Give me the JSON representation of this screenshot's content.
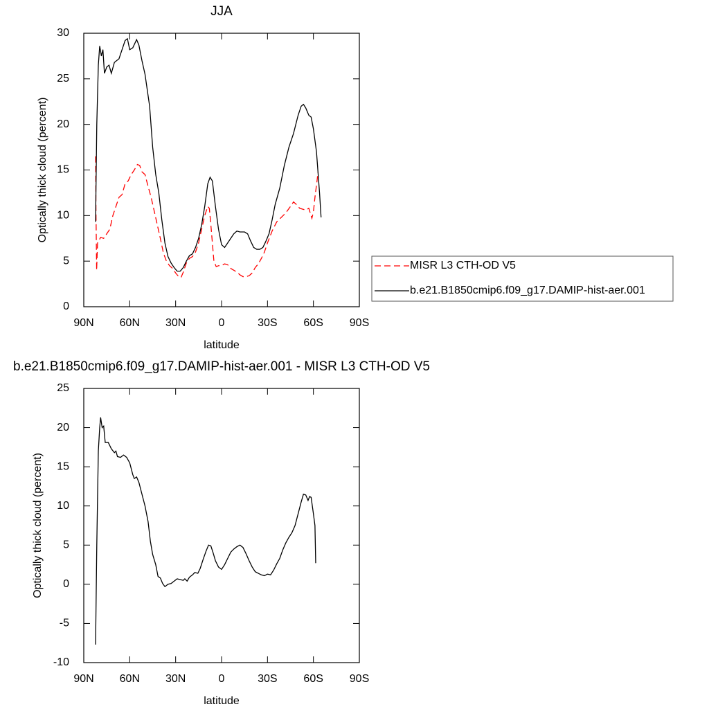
{
  "chart_data": [
    {
      "type": "line",
      "title": "JJA",
      "xlabel": "latitude",
      "ylabel": "Optically thick cloud (percent)",
      "xlim": [
        90,
        -90
      ],
      "xticks": [
        {
          "value": 90,
          "label": "90N"
        },
        {
          "value": 60,
          "label": "60N"
        },
        {
          "value": 30,
          "label": "30N"
        },
        0,
        {
          "value": -30,
          "label": "30S"
        },
        {
          "value": -60,
          "label": "60S"
        },
        {
          "value": -90,
          "label": "90S"
        }
      ],
      "ylim": [
        0,
        30
      ],
      "yticks": [
        0,
        5,
        10,
        15,
        20,
        25,
        30
      ],
      "legend": "right",
      "series": [
        {
          "name": "MISR L3 CTH-OD V5",
          "color": "#ff0000",
          "line_style": "dashed",
          "x": [
            82.3,
            82,
            81.6,
            81,
            79,
            77,
            75,
            73,
            71,
            69,
            67,
            65,
            63,
            61,
            59,
            57,
            55,
            53.5,
            52,
            50,
            48,
            46,
            44,
            42,
            40,
            38,
            36,
            34,
            32,
            30,
            28,
            26.5,
            25,
            23,
            21,
            19,
            17,
            15,
            13,
            11,
            9,
            8,
            7,
            6,
            5,
            3.5,
            2,
            0,
            -2,
            -4,
            -6,
            -8,
            -10,
            -12,
            -14,
            -16,
            -18,
            -20,
            -22,
            -24,
            -26,
            -28,
            -30,
            -33,
            -36,
            -39,
            -42,
            -45,
            -47,
            -49,
            -51,
            -53,
            -55,
            -57,
            -59,
            -60,
            -61,
            -62.5,
            -63
          ],
          "values": [
            16.5,
            10,
            4,
            7,
            7.6,
            7.5,
            8,
            8.5,
            10,
            11,
            12,
            12.3,
            13.5,
            13.8,
            14.5,
            15,
            15.6,
            15.5,
            14.8,
            14.5,
            13.2,
            12,
            10.5,
            9,
            7.5,
            5.9,
            5,
            4.5,
            4.2,
            3.7,
            3.3,
            3.2,
            3.8,
            4.8,
            5.3,
            5.5,
            6,
            7,
            8.5,
            10,
            11,
            10.8,
            9,
            7,
            5,
            4.4,
            4.5,
            4.5,
            4.7,
            4.6,
            4.2,
            4,
            3.8,
            3.5,
            3.3,
            3.3,
            3.4,
            3.7,
            4.3,
            4.7,
            5.3,
            6,
            7,
            8.3,
            9.3,
            9.8,
            10.3,
            11,
            11.5,
            11.2,
            10.8,
            10.7,
            10.6,
            10.8,
            9.7,
            10.4,
            12,
            14,
            14.8
          ]
        },
        {
          "name": "b.e21.B1850cmip6.f09_g17.DAMIP-hist-aer.001",
          "color": "#000000",
          "line_style": "solid",
          "x": [
            82.3,
            81.5,
            80.5,
            79.6,
            78.5,
            77.5,
            76.5,
            75,
            73.5,
            72,
            70,
            67,
            65,
            63,
            61.5,
            60,
            58,
            55.5,
            54,
            52,
            50,
            47,
            45,
            43,
            41,
            39,
            37,
            35,
            33,
            31,
            29,
            27,
            25,
            23,
            21,
            19,
            17,
            15,
            13,
            11,
            9,
            7.5,
            6,
            4,
            2,
            0,
            -2,
            -4,
            -6,
            -8,
            -10,
            -12,
            -15,
            -17,
            -19,
            -21,
            -23,
            -25,
            -27,
            -29,
            -31,
            -33,
            -35,
            -38,
            -41,
            -44,
            -47,
            -50,
            -52,
            -53.5,
            -55,
            -57,
            -58.5,
            -60,
            -62,
            -64,
            -65
          ],
          "values": [
            9.3,
            20,
            26.5,
            28.6,
            27.5,
            28.2,
            25.6,
            26.3,
            26.5,
            25.6,
            26.8,
            27.2,
            28.2,
            29.2,
            29.4,
            28.2,
            28.4,
            29.3,
            28.7,
            27,
            25.5,
            22,
            17.5,
            14.5,
            12.5,
            9.5,
            7,
            5.5,
            4.8,
            4.3,
            3.9,
            3.9,
            4.3,
            5,
            5.6,
            5.8,
            6.5,
            7.5,
            9,
            11,
            13.5,
            14.2,
            13.8,
            11,
            8.5,
            6.8,
            6.5,
            7,
            7.5,
            8,
            8.3,
            8.2,
            8.2,
            8,
            7.2,
            6.5,
            6.3,
            6.3,
            6.5,
            7.2,
            8,
            9.5,
            11.2,
            13,
            15.5,
            17.5,
            19,
            21,
            22,
            22.2,
            21.8,
            21,
            20.8,
            19.5,
            17,
            12.5,
            9.8
          ]
        }
      ]
    },
    {
      "type": "line",
      "title": "b.e21.B1850cmip6.f09_g17.DAMIP-hist-aer.001 - MISR L3 CTH-OD V5",
      "xlabel": "latitude",
      "ylabel": "Optically thick cloud (percent)",
      "xlim": [
        90,
        -90
      ],
      "xticks": [
        {
          "value": 90,
          "label": "90N"
        },
        {
          "value": 60,
          "label": "60N"
        },
        {
          "value": 30,
          "label": "30N"
        },
        0,
        {
          "value": -30,
          "label": "30S"
        },
        {
          "value": -60,
          "label": "60S"
        },
        {
          "value": -90,
          "label": "90S"
        }
      ],
      "ylim": [
        -10,
        25
      ],
      "yticks": [
        -10,
        -5,
        0,
        5,
        10,
        15,
        20,
        25
      ],
      "color": "#000000",
      "x": [
        82.3,
        81.5,
        80.5,
        79.6,
        79,
        78,
        77,
        76,
        74,
        72,
        70,
        69,
        68,
        66,
        64,
        62,
        60,
        58,
        57,
        55.5,
        54,
        52,
        50,
        48,
        46.5,
        45,
        43,
        41.5,
        40,
        38.5,
        37,
        35,
        33,
        31,
        29,
        27,
        25,
        24,
        22.5,
        21,
        19,
        17.5,
        15.5,
        14,
        12,
        10,
        8.5,
        7,
        5.5,
        4,
        2,
        0,
        -2,
        -4,
        -6,
        -8,
        -10,
        -12,
        -14,
        -16,
        -18,
        -20,
        -22,
        -24,
        -26,
        -28,
        -30,
        -32,
        -34,
        -36,
        -38,
        -40,
        -42,
        -44,
        -46,
        -48,
        -50,
        -52,
        -53.5,
        -55,
        -56.5,
        -57.5,
        -58.5,
        -60,
        -61,
        -61.5
      ],
      "values": [
        -7.7,
        5,
        17,
        20,
        21.3,
        20,
        20.2,
        18.1,
        18.1,
        17.3,
        16.8,
        17,
        16.3,
        16.2,
        16.5,
        16.2,
        15.5,
        14,
        13.5,
        13.7,
        13,
        11.5,
        10,
        8,
        5.5,
        3.8,
        2.5,
        1,
        0.8,
        0.1,
        -0.3,
        0,
        0.1,
        0.4,
        0.7,
        0.6,
        0.5,
        0.7,
        0.4,
        0.9,
        1.2,
        1.5,
        1.4,
        2,
        3.2,
        4.3,
        5,
        4.9,
        4,
        3,
        2.2,
        1.9,
        2.5,
        3.3,
        4.1,
        4.5,
        4.8,
        5,
        4.7,
        3.9,
        3,
        2.2,
        1.6,
        1.4,
        1.2,
        1.1,
        1.3,
        1.2,
        1.8,
        2.6,
        3.3,
        4.4,
        5.3,
        6,
        6.6,
        7.5,
        9,
        10.5,
        11.5,
        11.4,
        10.7,
        11.2,
        11.1,
        9,
        7.5,
        2.7
      ]
    }
  ]
}
